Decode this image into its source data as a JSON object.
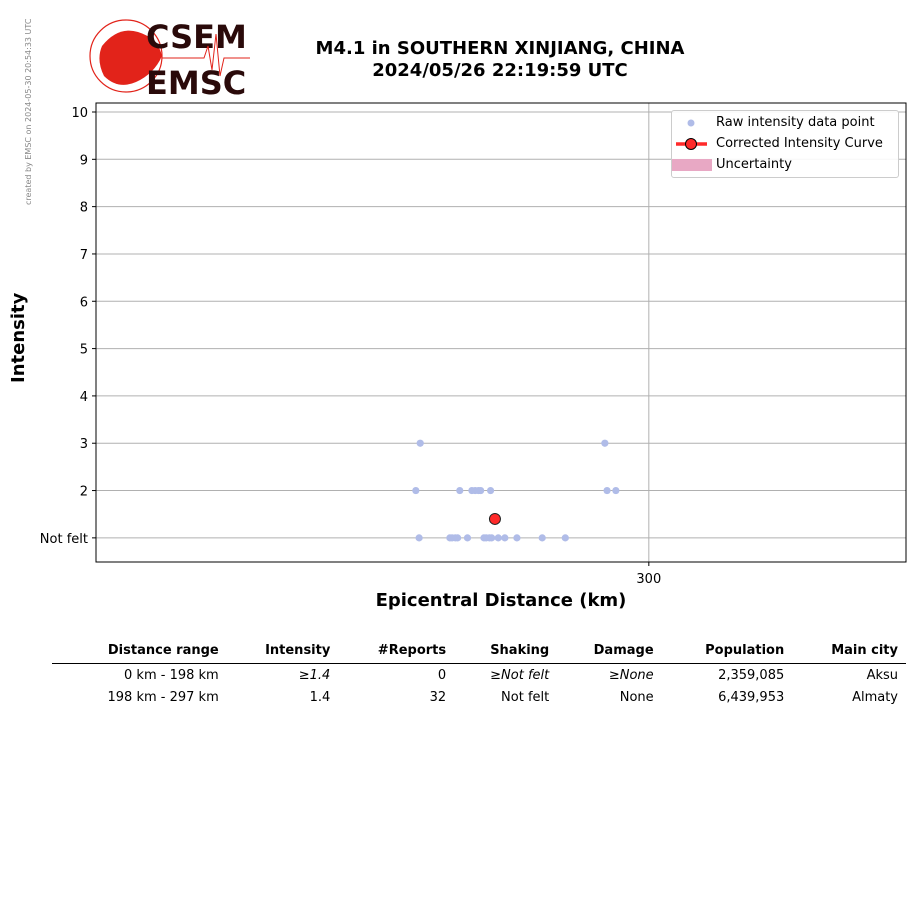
{
  "credit": "created by EMSC on 2024-05-30 20:54:33 UTC",
  "logo": {
    "text_top": "CSEM",
    "text_bottom": "EMSC",
    "color": "#e2231a"
  },
  "title_line1": "M4.1 in SOUTHERN XINJIANG, CHINA",
  "title_line2": "2024/05/26 22:19:59 UTC",
  "chart_data": {
    "type": "scatter",
    "xlabel": "Epicentral Distance (km)",
    "ylabel": "Intensity",
    "xlim": [
      249.7,
      323.4
    ],
    "ylim": [
      0.49,
      10.19
    ],
    "xticks": [
      {
        "value": 300,
        "label": "300"
      }
    ],
    "yticks": [
      {
        "value": 1,
        "label": "Not felt"
      },
      {
        "value": 2,
        "label": "2"
      },
      {
        "value": 3,
        "label": "3"
      },
      {
        "value": 4,
        "label": "4"
      },
      {
        "value": 5,
        "label": "5"
      },
      {
        "value": 6,
        "label": "6"
      },
      {
        "value": 7,
        "label": "7"
      },
      {
        "value": 8,
        "label": "8"
      },
      {
        "value": 9,
        "label": "9"
      },
      {
        "value": 10,
        "label": "10"
      }
    ],
    "grid": true,
    "legend_position": "top-right",
    "series": [
      {
        "name": "Raw intensity data point",
        "color": "#b0bce8",
        "points": [
          [
            279.2,
            3
          ],
          [
            296.0,
            3
          ],
          [
            278.8,
            2
          ],
          [
            282.8,
            2
          ],
          [
            283.9,
            2
          ],
          [
            284.2,
            2
          ],
          [
            284.5,
            2
          ],
          [
            284.7,
            2
          ],
          [
            285.6,
            2
          ],
          [
            296.2,
            2
          ],
          [
            297.0,
            2
          ],
          [
            279.1,
            1
          ],
          [
            281.9,
            1
          ],
          [
            282.1,
            1
          ],
          [
            282.4,
            1
          ],
          [
            282.6,
            1
          ],
          [
            283.5,
            1
          ],
          [
            285.0,
            1
          ],
          [
            285.2,
            1
          ],
          [
            285.5,
            1
          ],
          [
            285.7,
            1
          ],
          [
            286.3,
            1
          ],
          [
            286.9,
            1
          ],
          [
            288.0,
            1
          ],
          [
            290.3,
            1
          ],
          [
            292.4,
            1
          ]
        ]
      },
      {
        "name": "Corrected Intensity Curve",
        "color": "#ff2a2a",
        "points": [
          [
            286.0,
            1.4
          ]
        ]
      },
      {
        "name": "Uncertainty",
        "color": "#e8a8c4",
        "points": []
      }
    ]
  },
  "table": {
    "headers": [
      "Distance range",
      "Intensity",
      "#Reports",
      "Shaking",
      "Damage",
      "Population",
      "Main city"
    ],
    "rows": [
      [
        "0 km -  198 km",
        "≥1.4",
        "0",
        "≥Not felt",
        "≥None",
        "2,359,085",
        "Aksu"
      ],
      [
        "198 km -  297 km",
        "1.4",
        "32",
        "Not felt",
        "None",
        "6,439,953",
        "Almaty"
      ]
    ]
  }
}
